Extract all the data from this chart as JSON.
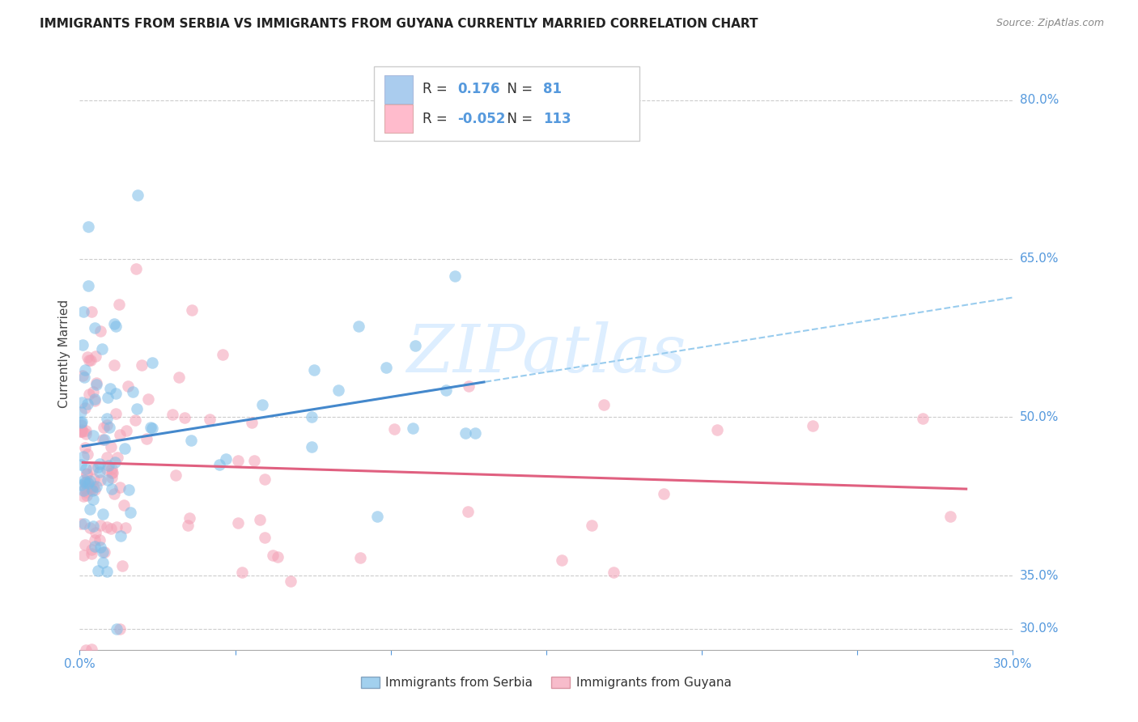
{
  "title": "IMMIGRANTS FROM SERBIA VS IMMIGRANTS FROM GUYANA CURRENTLY MARRIED CORRELATION CHART",
  "source": "Source: ZipAtlas.com",
  "ylabel": "Currently Married",
  "x_min": 0.0,
  "x_max": 0.3,
  "y_min": 0.28,
  "y_max": 0.84,
  "y_ticks": [
    0.3,
    0.35,
    0.5,
    0.65,
    0.8
  ],
  "y_tick_labels": [
    "30.0%",
    "35.0%",
    "50.0%",
    "65.0%",
    "80.0%"
  ],
  "x_ticks": [
    0.0,
    0.05,
    0.1,
    0.15,
    0.2,
    0.25,
    0.3
  ],
  "x_tick_labels": [
    "0.0%",
    "",
    "",
    "",
    "",
    "",
    "30.0%"
  ],
  "serbia_R": 0.176,
  "serbia_N": 81,
  "guyana_R": -0.052,
  "guyana_N": 113,
  "serbia_color": "#7bbce8",
  "guyana_color": "#f4a0b5",
  "serbia_line_color": "#4488cc",
  "guyana_line_color": "#e06080",
  "dashed_line_color": "#99ccee",
  "background_color": "#ffffff",
  "grid_color": "#cccccc",
  "tick_label_color": "#5599dd",
  "watermark_color": "#ddeeff",
  "legend_border_color": "#cccccc",
  "legend_sq_serbia": "#aaccee",
  "legend_sq_guyana": "#ffbbcc",
  "title_color": "#222222",
  "source_color": "#888888",
  "ylabel_color": "#444444"
}
